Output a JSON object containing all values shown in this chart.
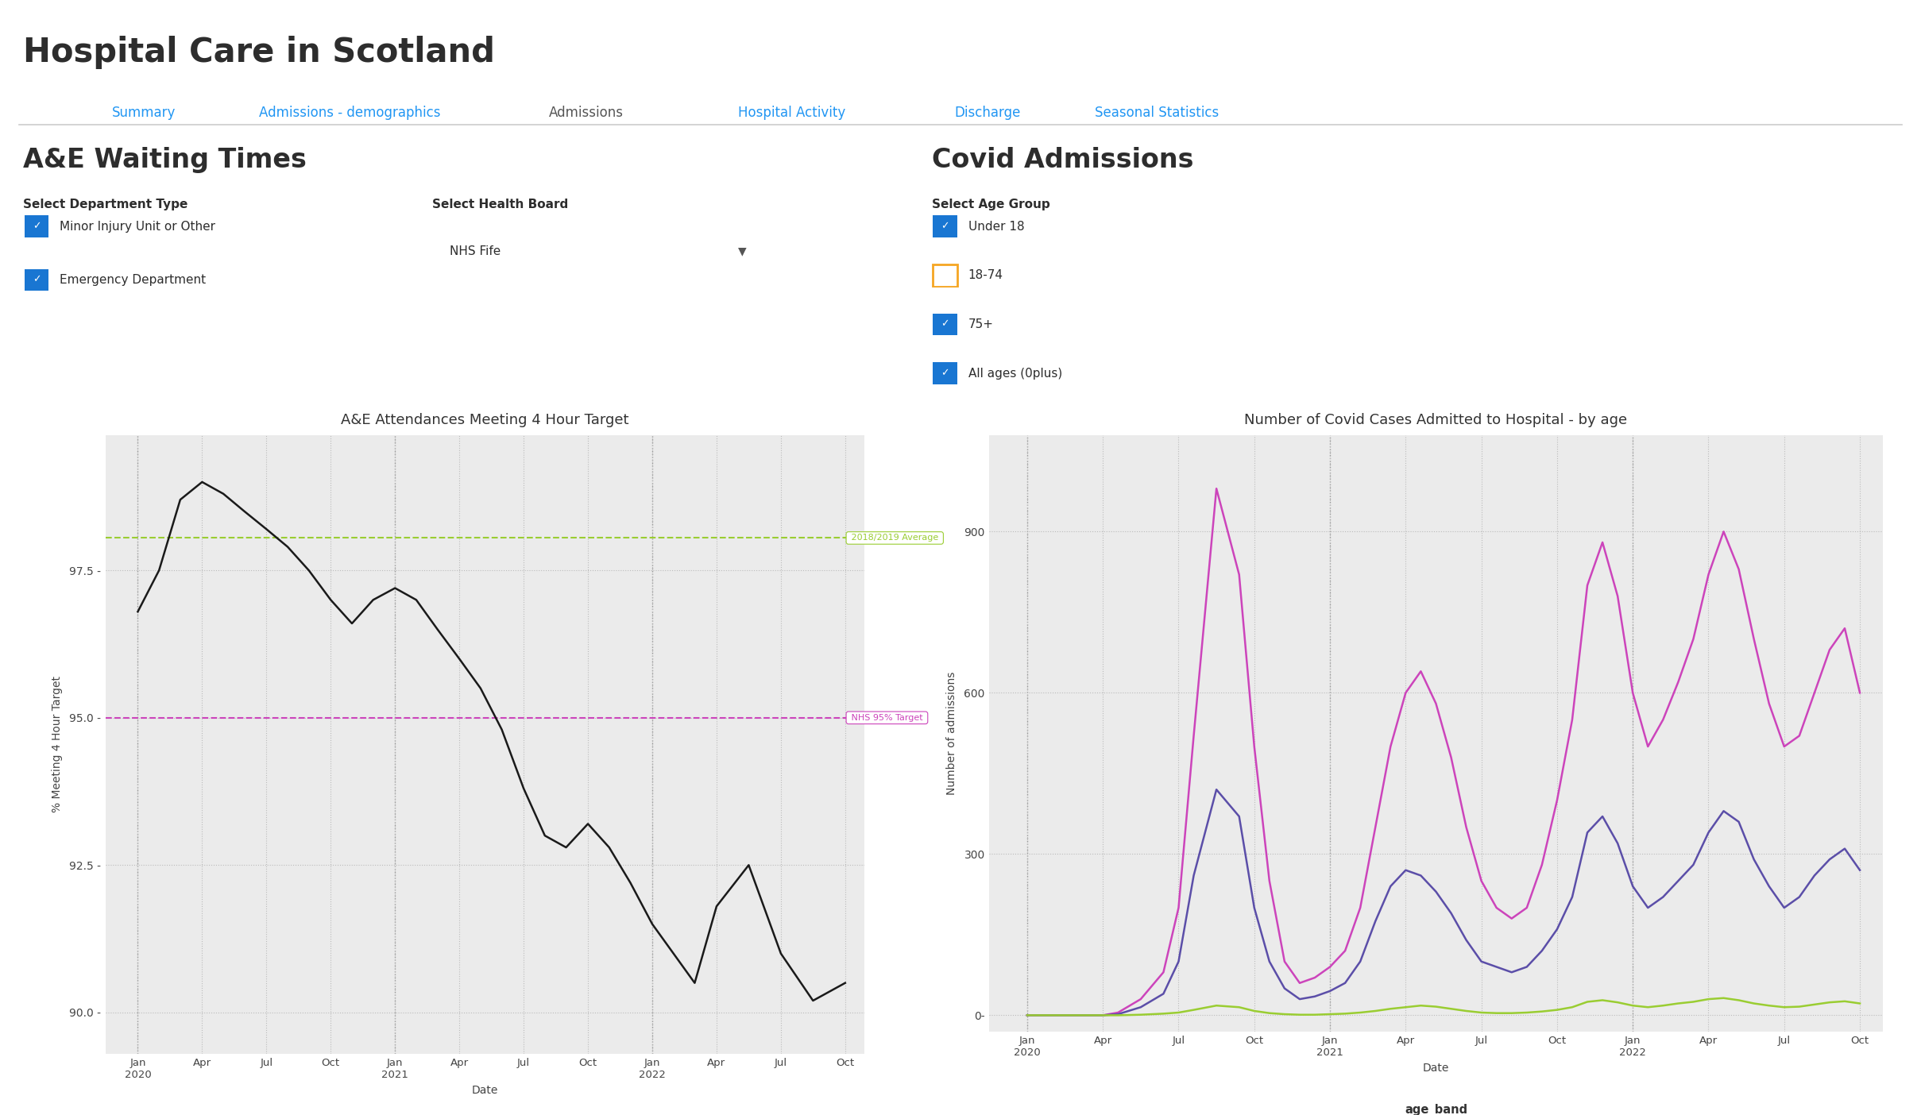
{
  "title": "Hospital Care in Scotland",
  "tabs": [
    "Summary",
    "Admissions - demographics",
    "Admissions",
    "Hospital Activity",
    "Discharge",
    "Seasonal Statistics"
  ],
  "active_tab_idx": 2,
  "tab_color": "#2196F3",
  "active_tab_color": "#555555",
  "bg_color": "#ffffff",
  "left_section_title": "A&E Waiting Times",
  "left_dept_label": "Select Department Type",
  "left_dept_items": [
    "Minor Injury Unit or Other",
    "Emergency Department"
  ],
  "left_health_label": "Select Health Board",
  "left_health_value": "NHS Fife",
  "ae_chart_title": "A&E Attendances Meeting 4 Hour Target",
  "ae_ylabel": "% Meeting 4 Hour Target",
  "ae_xlabel": "Date",
  "ae_ylim": [
    89.3,
    99.8
  ],
  "ae_yticks": [
    90.0,
    92.5,
    95.0,
    97.5
  ],
  "ae_line_color": "#1a1a1a",
  "ae_avg_line_value": 98.05,
  "ae_avg_line_color": "#9acd32",
  "ae_avg_label": "2018/2019 Average",
  "ae_target_value": 95.0,
  "ae_target_color": "#cc44bb",
  "ae_target_label": "NHS 95% Target",
  "ae_x_labels": [
    "Jan\n2020",
    "Apr",
    "Jul",
    "Oct",
    "Jan\n2021",
    "Apr",
    "Jul",
    "Oct",
    "Jan\n2022",
    "Apr",
    "Jul",
    "Oct"
  ],
  "ae_x_positions": [
    0,
    1,
    2,
    3,
    4,
    5,
    6,
    7,
    8,
    9,
    10,
    11
  ],
  "ae_data_x": [
    0.0,
    0.33,
    0.66,
    1.0,
    1.33,
    1.66,
    2.0,
    2.33,
    2.66,
    3.0,
    3.33,
    3.66,
    4.0,
    4.33,
    4.66,
    5.0,
    5.33,
    5.66,
    6.0,
    6.33,
    6.66,
    7.0,
    7.33,
    7.66,
    8.0,
    8.33,
    8.66,
    9.0,
    9.5,
    10.0,
    10.5,
    11.0
  ],
  "ae_data_y": [
    96.8,
    97.5,
    98.7,
    99.0,
    98.8,
    98.5,
    98.2,
    97.9,
    97.5,
    97.0,
    96.6,
    97.0,
    97.2,
    97.0,
    96.5,
    96.0,
    95.5,
    94.8,
    93.8,
    93.0,
    92.8,
    93.2,
    92.8,
    92.2,
    91.5,
    91.0,
    90.5,
    91.8,
    92.5,
    91.0,
    90.2,
    90.5
  ],
  "right_section_title": "Covid Admissions",
  "right_age_label": "Select Age Group",
  "right_age_items": [
    "Under 18",
    "18-74",
    "75+",
    "All ages (0plus)"
  ],
  "right_age_checked": [
    true,
    false,
    true,
    true
  ],
  "covid_chart_title": "Number of Covid Cases Admitted to Hospital - by age",
  "covid_ylabel": "Number of admissions",
  "covid_xlabel": "Date",
  "covid_ylim": [
    -30,
    1080
  ],
  "covid_yticks": [
    0,
    300,
    600,
    900
  ],
  "covid_ytick_labels": [
    "0-",
    "300",
    "600",
    "900"
  ],
  "covid_x_labels": [
    "Jan\n2020",
    "Apr",
    "Jul",
    "Oct",
    "Jan\n2021",
    "Apr",
    "Jul",
    "Oct",
    "Jan\n2022",
    "Apr",
    "Jul",
    "Oct"
  ],
  "covid_x_positions": [
    0,
    1,
    2,
    3,
    4,
    5,
    6,
    7,
    8,
    9,
    10,
    11
  ],
  "covid_75plus_color": "#5b4ea8",
  "covid_75plus_label": "75+",
  "covid_allages_color": "#cc44bb",
  "covid_allages_label": "All ages (0plus)",
  "covid_under18_color": "#9acd32",
  "covid_under18_label": "Under 18",
  "covid_allages_x": [
    0,
    0.2,
    0.4,
    0.6,
    0.8,
    1.0,
    1.2,
    1.5,
    1.8,
    2.0,
    2.2,
    2.5,
    2.8,
    3.0,
    3.2,
    3.4,
    3.6,
    3.8,
    4.0,
    4.2,
    4.4,
    4.6,
    4.8,
    5.0,
    5.2,
    5.4,
    5.6,
    5.8,
    6.0,
    6.2,
    6.4,
    6.6,
    6.8,
    7.0,
    7.2,
    7.4,
    7.6,
    7.8,
    8.0,
    8.2,
    8.4,
    8.6,
    8.8,
    9.0,
    9.2,
    9.4,
    9.6,
    9.8,
    10.0,
    10.2,
    10.4,
    10.6,
    10.8,
    11.0
  ],
  "covid_allages_y": [
    0,
    0,
    0,
    0,
    0,
    0,
    5,
    30,
    80,
    200,
    520,
    980,
    820,
    500,
    250,
    100,
    60,
    70,
    90,
    120,
    200,
    350,
    500,
    600,
    640,
    580,
    480,
    350,
    250,
    200,
    180,
    200,
    280,
    400,
    550,
    800,
    880,
    780,
    600,
    500,
    550,
    620,
    700,
    820,
    900,
    830,
    700,
    580,
    500,
    520,
    600,
    680,
    720,
    600
  ],
  "covid_75plus_x": [
    0,
    0.2,
    0.4,
    0.6,
    0.8,
    1.0,
    1.2,
    1.5,
    1.8,
    2.0,
    2.2,
    2.5,
    2.8,
    3.0,
    3.2,
    3.4,
    3.6,
    3.8,
    4.0,
    4.2,
    4.4,
    4.6,
    4.8,
    5.0,
    5.2,
    5.4,
    5.6,
    5.8,
    6.0,
    6.2,
    6.4,
    6.6,
    6.8,
    7.0,
    7.2,
    7.4,
    7.6,
    7.8,
    8.0,
    8.2,
    8.4,
    8.6,
    8.8,
    9.0,
    9.2,
    9.4,
    9.6,
    9.8,
    10.0,
    10.2,
    10.4,
    10.6,
    10.8,
    11.0
  ],
  "covid_75plus_y": [
    0,
    0,
    0,
    0,
    0,
    0,
    2,
    15,
    40,
    100,
    260,
    420,
    370,
    200,
    100,
    50,
    30,
    35,
    45,
    60,
    100,
    175,
    240,
    270,
    260,
    230,
    190,
    140,
    100,
    90,
    80,
    90,
    120,
    160,
    220,
    340,
    370,
    320,
    240,
    200,
    220,
    250,
    280,
    340,
    380,
    360,
    290,
    240,
    200,
    220,
    260,
    290,
    310,
    270
  ],
  "covid_under18_x": [
    0,
    0.2,
    0.4,
    0.6,
    0.8,
    1.0,
    1.2,
    1.5,
    1.8,
    2.0,
    2.2,
    2.5,
    2.8,
    3.0,
    3.2,
    3.4,
    3.6,
    3.8,
    4.0,
    4.2,
    4.4,
    4.6,
    4.8,
    5.0,
    5.2,
    5.4,
    5.6,
    5.8,
    6.0,
    6.2,
    6.4,
    6.6,
    6.8,
    7.0,
    7.2,
    7.4,
    7.6,
    7.8,
    8.0,
    8.2,
    8.4,
    8.6,
    8.8,
    9.0,
    9.2,
    9.4,
    9.6,
    9.8,
    10.0,
    10.2,
    10.4,
    10.6,
    10.8,
    11.0
  ],
  "covid_under18_y": [
    0,
    0,
    0,
    0,
    0,
    0,
    0,
    1,
    3,
    5,
    10,
    18,
    15,
    8,
    4,
    2,
    1,
    1,
    2,
    3,
    5,
    8,
    12,
    15,
    18,
    16,
    12,
    8,
    5,
    4,
    4,
    5,
    7,
    10,
    15,
    25,
    28,
    24,
    18,
    15,
    18,
    22,
    25,
    30,
    32,
    28,
    22,
    18,
    15,
    16,
    20,
    24,
    26,
    22
  ],
  "legend_label": "age_band"
}
